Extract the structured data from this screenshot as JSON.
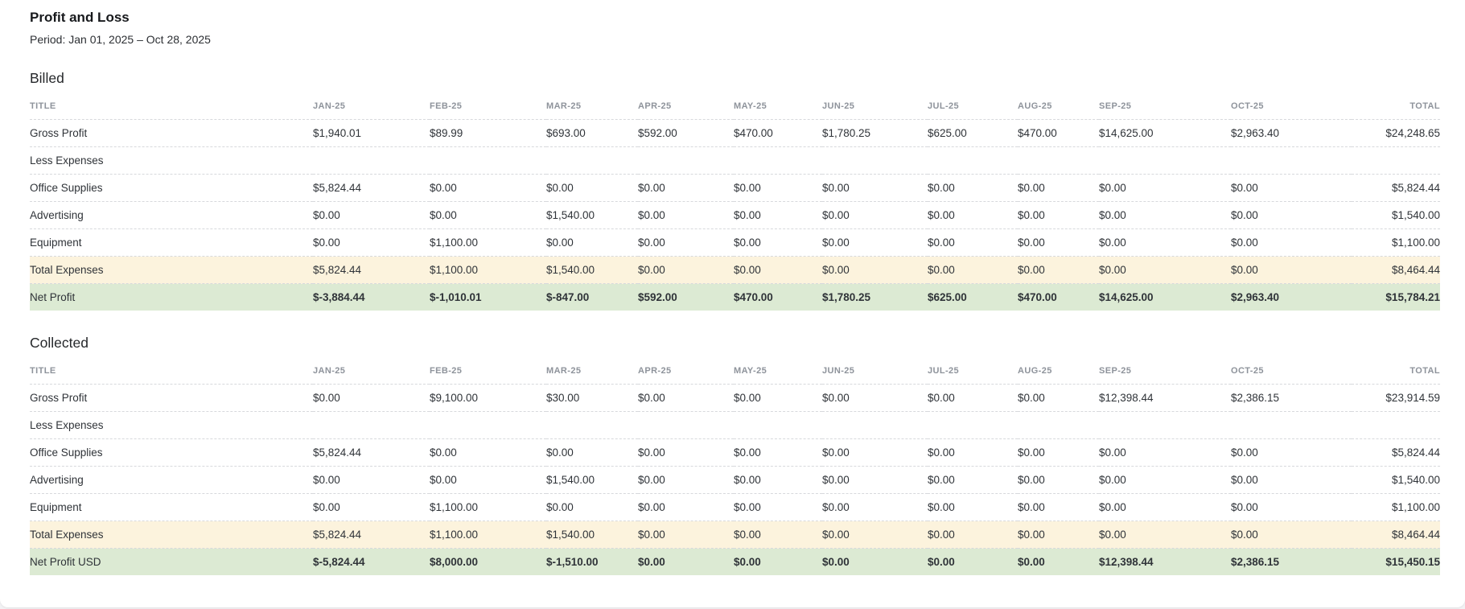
{
  "page": {
    "title": "Profit and Loss",
    "period": "Period: Jan 01, 2025 – Oct 28, 2025"
  },
  "colors": {
    "negative_value": "#e5202e",
    "subtotal_row_bg": "#fcf3dd",
    "total_row_bg": "#dcead3"
  },
  "columns": [
    "TITLE",
    "JAN-25",
    "FEB-25",
    "MAR-25",
    "APR-25",
    "MAY-25",
    "JUN-25",
    "JUL-25",
    "AUG-25",
    "SEP-25",
    "OCT-25",
    "TOTAL"
  ],
  "sections": [
    {
      "heading": "Billed",
      "rows": [
        {
          "title": "Gross Profit",
          "type": "normal",
          "values": [
            "$1,940.01",
            "$89.99",
            "$693.00",
            "$592.00",
            "$470.00",
            "$1,780.25",
            "$625.00",
            "$470.00",
            "$14,625.00",
            "$2,963.40",
            "$24,248.65"
          ]
        },
        {
          "title": "Less Expenses",
          "type": "group",
          "values": [
            "",
            "",
            "",
            "",
            "",
            "",
            "",
            "",
            "",
            "",
            ""
          ]
        },
        {
          "title": "Office Supplies",
          "type": "normal",
          "values": [
            "$5,824.44",
            "$0.00",
            "$0.00",
            "$0.00",
            "$0.00",
            "$0.00",
            "$0.00",
            "$0.00",
            "$0.00",
            "$0.00",
            "$5,824.44"
          ]
        },
        {
          "title": "Advertising",
          "type": "normal",
          "values": [
            "$0.00",
            "$0.00",
            "$1,540.00",
            "$0.00",
            "$0.00",
            "$0.00",
            "$0.00",
            "$0.00",
            "$0.00",
            "$0.00",
            "$1,540.00"
          ]
        },
        {
          "title": "Equipment",
          "type": "normal",
          "values": [
            "$0.00",
            "$1,100.00",
            "$0.00",
            "$0.00",
            "$0.00",
            "$0.00",
            "$0.00",
            "$0.00",
            "$0.00",
            "$0.00",
            "$1,100.00"
          ]
        },
        {
          "title": "Total Expenses",
          "type": "subtotal",
          "values": [
            "$5,824.44",
            "$1,100.00",
            "$1,540.00",
            "$0.00",
            "$0.00",
            "$0.00",
            "$0.00",
            "$0.00",
            "$0.00",
            "$0.00",
            "$8,464.44"
          ]
        },
        {
          "title": "Net Profit",
          "type": "total",
          "values": [
            "$-3,884.44",
            "$-1,010.01",
            "$-847.00",
            "$592.00",
            "$470.00",
            "$1,780.25",
            "$625.00",
            "$470.00",
            "$14,625.00",
            "$2,963.40",
            "$15,784.21"
          ]
        }
      ]
    },
    {
      "heading": "Collected",
      "rows": [
        {
          "title": "Gross Profit",
          "type": "normal",
          "values": [
            "$0.00",
            "$9,100.00",
            "$30.00",
            "$0.00",
            "$0.00",
            "$0.00",
            "$0.00",
            "$0.00",
            "$12,398.44",
            "$2,386.15",
            "$23,914.59"
          ]
        },
        {
          "title": "Less Expenses",
          "type": "group",
          "values": [
            "",
            "",
            "",
            "",
            "",
            "",
            "",
            "",
            "",
            "",
            ""
          ]
        },
        {
          "title": "Office Supplies",
          "type": "normal",
          "values": [
            "$5,824.44",
            "$0.00",
            "$0.00",
            "$0.00",
            "$0.00",
            "$0.00",
            "$0.00",
            "$0.00",
            "$0.00",
            "$0.00",
            "$5,824.44"
          ]
        },
        {
          "title": "Advertising",
          "type": "normal",
          "values": [
            "$0.00",
            "$0.00",
            "$1,540.00",
            "$0.00",
            "$0.00",
            "$0.00",
            "$0.00",
            "$0.00",
            "$0.00",
            "$0.00",
            "$1,540.00"
          ]
        },
        {
          "title": "Equipment",
          "type": "normal",
          "values": [
            "$0.00",
            "$1,100.00",
            "$0.00",
            "$0.00",
            "$0.00",
            "$0.00",
            "$0.00",
            "$0.00",
            "$0.00",
            "$0.00",
            "$1,100.00"
          ]
        },
        {
          "title": "Total Expenses",
          "type": "subtotal",
          "values": [
            "$5,824.44",
            "$1,100.00",
            "$1,540.00",
            "$0.00",
            "$0.00",
            "$0.00",
            "$0.00",
            "$0.00",
            "$0.00",
            "$0.00",
            "$8,464.44"
          ]
        },
        {
          "title": "Net Profit USD",
          "type": "total",
          "values": [
            "$-5,824.44",
            "$8,000.00",
            "$-1,510.00",
            "$0.00",
            "$0.00",
            "$0.00",
            "$0.00",
            "$0.00",
            "$12,398.44",
            "$2,386.15",
            "$15,450.15"
          ]
        }
      ]
    }
  ]
}
